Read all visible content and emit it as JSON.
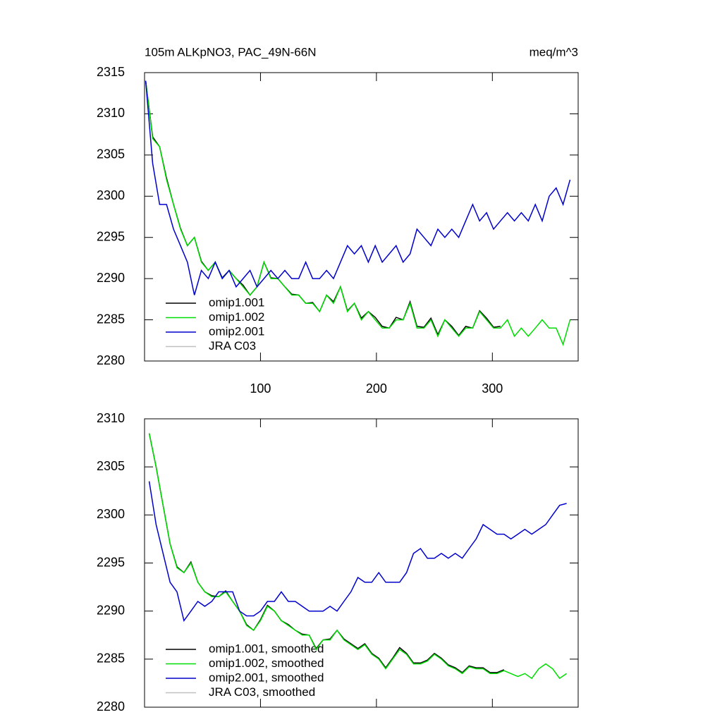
{
  "chart_data": [
    {
      "type": "line",
      "title": "105m ALKpNO3, PAC_49N-66N",
      "units": "meq/m^3",
      "legend": "lower left",
      "x": [
        1,
        7,
        13,
        19,
        25,
        31,
        37,
        43,
        49,
        55,
        61,
        67,
        73,
        79,
        85,
        91,
        97,
        103,
        109,
        115,
        121,
        127,
        133,
        139,
        145,
        151,
        157,
        163,
        169,
        175,
        181,
        187,
        193,
        199,
        205,
        211,
        217,
        223,
        229,
        235,
        241,
        247,
        253,
        259,
        265,
        271,
        277,
        283,
        289,
        295,
        301,
        307,
        313,
        319,
        325,
        331,
        337,
        343,
        349,
        355,
        361,
        367
      ],
      "xlim": [
        0,
        374
      ],
      "xticks": [
        100,
        200,
        300
      ],
      "ylim": [
        2280,
        2315
      ],
      "yticks": [
        2280,
        2285,
        2290,
        2295,
        2300,
        2305,
        2310,
        2315
      ],
      "series": [
        {
          "name": "omip1.001",
          "color": "#000000",
          "values": [
            2314,
            2307.2,
            2306,
            2302.2,
            2299,
            2296.1,
            2294,
            2295,
            2292.1,
            2291,
            2292,
            2290.1,
            2291,
            2290,
            2289.2,
            2288,
            2289,
            2292,
            2290.1,
            2290,
            2289,
            2288.1,
            2288,
            2287,
            2287.1,
            2286,
            2288,
            2287.2,
            2289,
            2286.1,
            2287,
            2285.2,
            2286,
            2285.3,
            2284.2,
            2284,
            2285.3,
            2285,
            2287.2,
            2284.2,
            2284.1,
            2285.2,
            2283.2,
            2285,
            2284.2,
            2283.1,
            2284.2,
            2284,
            2286.1,
            2285.2,
            2284.1,
            2284.2,
            null,
            null,
            null,
            null,
            null,
            null,
            null,
            null,
            null,
            null
          ]
        },
        {
          "name": "omip1.002",
          "color": "#00dd00",
          "values": [
            2314,
            2307,
            2306,
            2302,
            2299,
            2296,
            2294,
            2295,
            2292,
            2291,
            2292,
            2290,
            2291,
            2290,
            2289,
            2288,
            2289,
            2292,
            2290,
            2290,
            2289,
            2288,
            2288,
            2287,
            2287,
            2286,
            2288,
            2287,
            2289,
            2286,
            2287,
            2285,
            2286,
            2285,
            2284,
            2284,
            2285,
            2285,
            2287,
            2284,
            2284,
            2285,
            2283,
            2285,
            2284,
            2283,
            2284,
            2284,
            2286,
            2285,
            2284,
            2284,
            2285,
            2283,
            2284,
            2283,
            2284,
            2285,
            2284,
            2284,
            2282,
            2285
          ]
        },
        {
          "name": "omip2.001",
          "color": "#0000cc",
          "values": [
            2314,
            2304,
            2299,
            2299,
            2296,
            2294,
            2292,
            2288,
            2291,
            2290,
            2292,
            2290,
            2291,
            2289,
            2290,
            2291,
            2289,
            2290,
            2291,
            2290,
            2291,
            2290,
            2290,
            2292,
            2290,
            2290,
            2291,
            2290,
            2292,
            2294,
            2293,
            2294,
            2292,
            2294,
            2292,
            2293,
            2294,
            2292,
            2293,
            2296,
            2295,
            2294,
            2296,
            2295,
            2296,
            2295,
            2297,
            2299,
            2297,
            2298,
            2296,
            2297,
            2298,
            2297,
            2298,
            2297,
            2299,
            2297,
            2300,
            2301,
            2299,
            2302
          ]
        },
        {
          "name": "JRA C03",
          "color": "#c0c0c0"
        }
      ]
    },
    {
      "type": "line",
      "legend": "lower left",
      "x": [
        4,
        10,
        16,
        22,
        28,
        34,
        40,
        46,
        52,
        58,
        64,
        70,
        76,
        82,
        88,
        94,
        100,
        106,
        112,
        118,
        124,
        130,
        136,
        142,
        148,
        154,
        160,
        166,
        172,
        178,
        184,
        190,
        196,
        202,
        208,
        214,
        220,
        226,
        232,
        238,
        244,
        250,
        256,
        262,
        268,
        274,
        280,
        286,
        292,
        298,
        304,
        310,
        316,
        322,
        328,
        334,
        340,
        346,
        352,
        358,
        364
      ],
      "xlim": [
        0,
        374
      ],
      "xticks": [
        100,
        200,
        300
      ],
      "ylim": [
        2280,
        2310
      ],
      "yticks": [
        2280,
        2285,
        2290,
        2295,
        2300,
        2305,
        2310
      ],
      "series": [
        {
          "name": "omip1.001, smoothed",
          "color": "#000000",
          "values": [
            2308.5,
            2305,
            2301,
            2297,
            2294.6,
            2294,
            2295.1,
            2293,
            2292,
            2291.6,
            2291.5,
            2292.1,
            2291,
            2290,
            2288.6,
            2288,
            2289.1,
            2290.6,
            2290,
            2289,
            2288.6,
            2288,
            2287.6,
            2287.5,
            2286.1,
            2287,
            2287.1,
            2288,
            2287.1,
            2286.6,
            2286.1,
            2286.6,
            2285.6,
            2285.1,
            2284.1,
            2285.1,
            2286.2,
            2285.6,
            2284.6,
            2284.6,
            2284.9,
            2285.6,
            2285.1,
            2284.4,
            2284.1,
            2283.6,
            2284.3,
            2284.1,
            2284.1,
            2283.6,
            2283.6,
            2283.9,
            null,
            null,
            null,
            null,
            null,
            null,
            null,
            null,
            null
          ]
        },
        {
          "name": "omip1.002, smoothed",
          "color": "#00dd00",
          "values": [
            2308.5,
            2305,
            2301,
            2297,
            2294.5,
            2294,
            2295,
            2293,
            2292,
            2291.5,
            2291.5,
            2292,
            2291,
            2290,
            2288.5,
            2288,
            2289,
            2290.5,
            2290,
            2289,
            2288.5,
            2288,
            2287.5,
            2287.5,
            2286,
            2287,
            2287,
            2288,
            2287,
            2286.5,
            2286,
            2286.5,
            2285.5,
            2285,
            2284,
            2285,
            2286,
            2285.5,
            2284.5,
            2284.5,
            2284.8,
            2285.5,
            2285,
            2284.3,
            2284,
            2283.5,
            2284.2,
            2284,
            2284,
            2283.5,
            2283.5,
            2283.8,
            2283.5,
            2283.2,
            2283.5,
            2283,
            2284,
            2284.5,
            2284,
            2283,
            2283.5
          ]
        },
        {
          "name": "omip2.001, smoothed",
          "color": "#0000cc",
          "values": [
            2303.5,
            2299,
            2296,
            2293,
            2292,
            2289,
            2290,
            2291,
            2290.5,
            2291,
            2292,
            2292,
            2292,
            2290,
            2289.5,
            2289.5,
            2290,
            2291,
            2291,
            2292,
            2291,
            2291,
            2290.5,
            2290,
            2290,
            2290,
            2290.5,
            2290,
            2291,
            2292,
            2293.5,
            2293,
            2293,
            2294,
            2293,
            2293,
            2293,
            2294,
            2296,
            2296.5,
            2295.5,
            2295.5,
            2296,
            2295.5,
            2296,
            2295.5,
            2296.5,
            2297.5,
            2299,
            2298.5,
            2298,
            2298,
            2297.5,
            2298,
            2298.5,
            2298,
            2298.5,
            2299,
            2300,
            2301,
            2301.2
          ]
        },
        {
          "name": "JRA C03, smoothed",
          "color": "#c0c0c0"
        }
      ]
    }
  ]
}
